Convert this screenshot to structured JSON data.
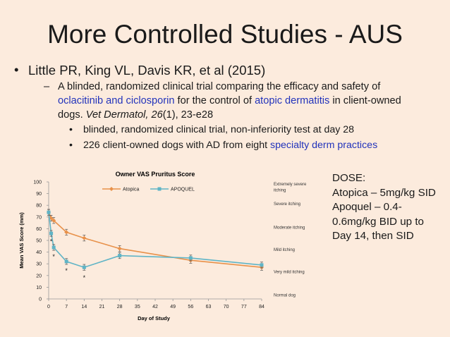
{
  "slide": {
    "title": "More Controlled Studies - AUS",
    "bullet1": "Little PR, King VL, Davis KR, et al (2015)",
    "sub1": {
      "pre": "A blinded, randomized clinical trial comparing the efficacy and safety of ",
      "drugs": "oclacitinib and ciclosporin",
      "mid": " for the control of ",
      "condition": "atopic dermatitis",
      "post": " in client-owned dogs. ",
      "journal": "Vet Dermatol, 26",
      "issue": "(1), 23-e28"
    },
    "sub2": "blinded, randomized clinical trial, non-inferiority test at day 28",
    "sub3_pre": "226 client-owned dogs with AD from eight ",
    "sub3_link": "specialty derm practices",
    "dose": [
      "DOSE:",
      "Atopica – 5mg/kg SID",
      "Apoquel – 0.4-",
      "0.6mg/kg BID up to",
      "Day 14, then SID"
    ]
  },
  "colors": {
    "atopica": "#E8914A",
    "apoquel": "#5FB4C6",
    "link": "#2233BB"
  },
  "chart_data": {
    "type": "line",
    "title": "Owner VAS Pruritus Score",
    "xlabel": "Day of Study",
    "ylabel": "Mean VAS Score (mm)",
    "ylim": [
      0,
      100
    ],
    "xlim": [
      0,
      84
    ],
    "x_ticks": [
      0,
      7,
      14,
      21,
      28,
      35,
      42,
      49,
      56,
      63,
      70,
      77,
      84
    ],
    "y_ticks": [
      0,
      10,
      20,
      30,
      40,
      50,
      60,
      70,
      80,
      90,
      100
    ],
    "series": [
      {
        "name": "Atopica",
        "x": [
          0,
          1,
          2,
          7,
          14,
          28,
          56,
          84
        ],
        "values": [
          74,
          69,
          67,
          57,
          52,
          43,
          33,
          27
        ],
        "errors": [
          2.5,
          2.5,
          2.5,
          2.5,
          2.5,
          2.5,
          2.5,
          2.5
        ]
      },
      {
        "name": "APOQUEL",
        "x": [
          0,
          1,
          2,
          7,
          14,
          28,
          56,
          84
        ],
        "values": [
          74,
          56,
          44,
          32,
          27,
          37,
          35,
          29
        ],
        "errors": [
          2.5,
          2.5,
          2.5,
          2.5,
          2.5,
          2.5,
          2.5,
          2.5
        ]
      }
    ],
    "significance": [
      {
        "x": 1,
        "y": 49,
        "label": "*"
      },
      {
        "x": 2,
        "y": 36,
        "label": "*"
      },
      {
        "x": 7,
        "y": 24,
        "label": "*"
      },
      {
        "x": 14,
        "y": 18,
        "label": "*"
      }
    ],
    "annotations": [
      {
        "y": 97,
        "text": "Extremely severe itching"
      },
      {
        "y": 80,
        "text": "Severe itching"
      },
      {
        "y": 60,
        "text": "Moderate itching"
      },
      {
        "y": 41,
        "text": "Mild itching"
      },
      {
        "y": 22,
        "text": "Very mild itching"
      },
      {
        "y": 2,
        "text": "Normal dog"
      }
    ]
  }
}
